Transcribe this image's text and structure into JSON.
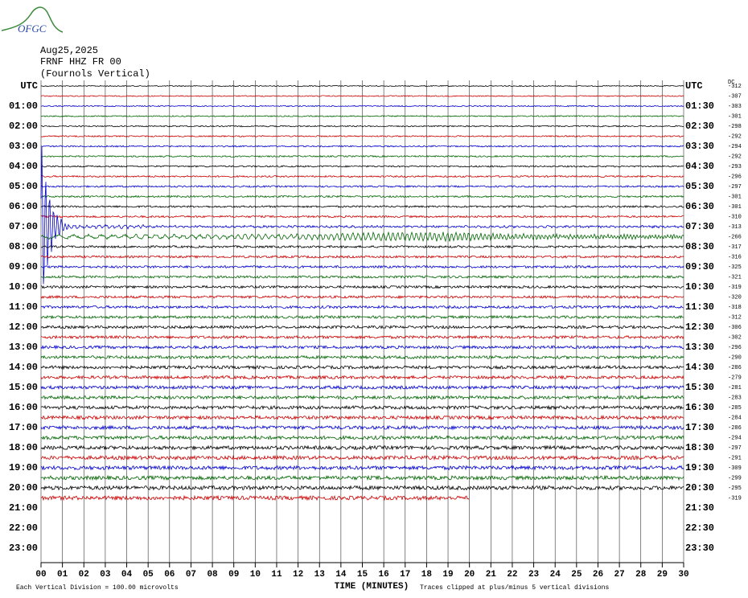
{
  "header": {
    "logo": "OFGC",
    "date": "Aug25,2025",
    "station": "FRNF HHZ FR 00",
    "component": "(Fournols Vertical)"
  },
  "left_labels": [
    "UTC",
    "01:00",
    "02:00",
    "03:00",
    "04:00",
    "05:00",
    "06:00",
    "07:00",
    "08:00",
    "09:00",
    "10:00",
    "11:00",
    "12:00",
    "13:00",
    "14:00",
    "15:00",
    "16:00",
    "17:00",
    "18:00",
    "19:00",
    "20:00",
    "21:00",
    "22:00",
    "23:00"
  ],
  "right_labels": [
    "UTC",
    "01:30",
    "02:30",
    "03:30",
    "04:30",
    "05:30",
    "06:30",
    "07:30",
    "08:30",
    "09:30",
    "10:30",
    "11:30",
    "12:30",
    "13:30",
    "14:30",
    "15:30",
    "16:30",
    "17:30",
    "18:30",
    "19:30",
    "20:30",
    "21:30",
    "22:30",
    "23:30"
  ],
  "dc_header": "DC",
  "dc_values": [
    "-312",
    "-307",
    "-303",
    "-301",
    "-298",
    "-292",
    "-294",
    "-292",
    "-293",
    "-296",
    "-297",
    "-301",
    "-301",
    "-310",
    "-313",
    "-266",
    "-317",
    "-316",
    "-325",
    "-321",
    "-319",
    "-320",
    "-318",
    "-312",
    "-306",
    "-302",
    "-296",
    "-290",
    "-286",
    "-279",
    "-281",
    "-283",
    "-285",
    "-284",
    "-286",
    "-294",
    "-297",
    "-291",
    "-309",
    "-299",
    "-295",
    "-319"
  ],
  "x_ticks": [
    "00",
    "01",
    "02",
    "03",
    "04",
    "05",
    "06",
    "07",
    "08",
    "09",
    "10",
    "11",
    "12",
    "13",
    "14",
    "15",
    "16",
    "17",
    "18",
    "19",
    "20",
    "21",
    "22",
    "23",
    "24",
    "25",
    "26",
    "27",
    "28",
    "29",
    "30"
  ],
  "footer": {
    "scale": "Each Vertical Division =  100.00 microvolts",
    "axis_title": "TIME (MINUTES)",
    "clip_note": "Traces clipped at plus/minus 5 vertical divisions"
  }
}
